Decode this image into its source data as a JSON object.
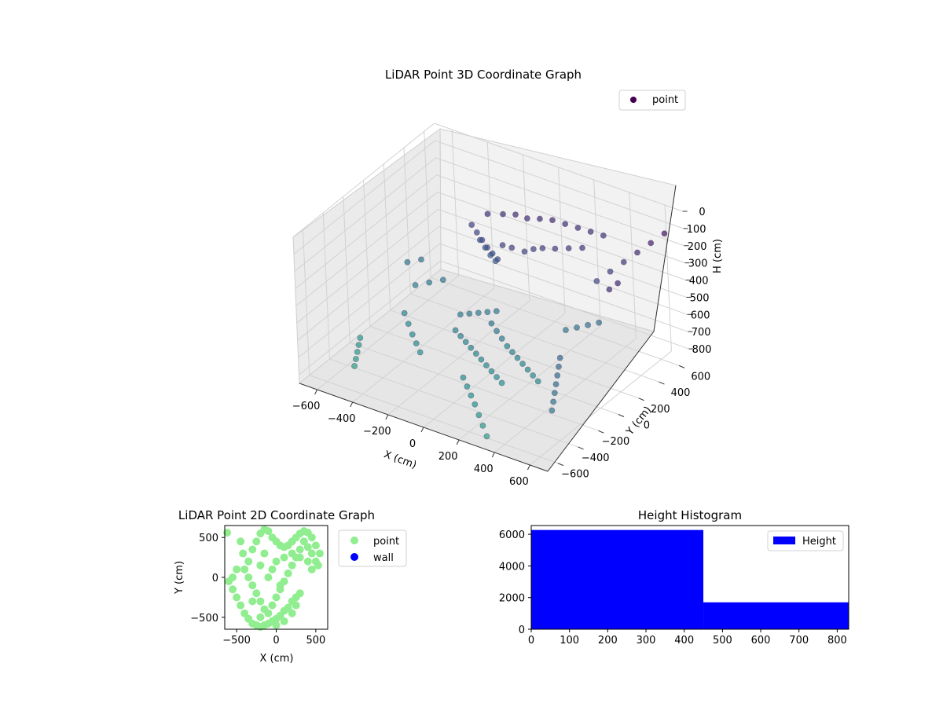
{
  "chart_data": [
    {
      "type": "scatter",
      "title": "LiDAR Point 3D Coordinate Graph",
      "xlabel": "X (cm)",
      "ylabel": "Y (cm)",
      "zlabel": "H (cm)",
      "xlim": [
        -700,
        700
      ],
      "ylim": [
        -700,
        700
      ],
      "zlim": [
        0,
        850
      ],
      "z_inverted": true,
      "grid": true,
      "legend_position": "top-right",
      "x_ticks": [
        "−600",
        "−400",
        "−200",
        "0",
        "200",
        "400",
        "600"
      ],
      "y_ticks": [
        "600",
        "400",
        "200",
        "0",
        "−200",
        "−400",
        "−600"
      ],
      "z_ticks": [
        "0",
        "100",
        "200",
        "300",
        "400",
        "500",
        "600",
        "700",
        "800"
      ],
      "series": [
        {
          "name": "point",
          "color": "#440154",
          "colormap": "viridis",
          "points": [
            [
              -250,
              420,
              230
            ],
            [
              -180,
              450,
              220
            ],
            [
              -120,
              470,
              210
            ],
            [
              -60,
              480,
              215
            ],
            [
              0,
              500,
              205
            ],
            [
              60,
              520,
              200
            ],
            [
              120,
              540,
              210
            ],
            [
              180,
              560,
              220
            ],
            [
              240,
              580,
              230
            ],
            [
              300,
              600,
              240
            ],
            [
              -320,
              380,
              300
            ],
            [
              -280,
              360,
              320
            ],
            [
              -240,
              340,
              340
            ],
            [
              -200,
              320,
              360
            ],
            [
              -160,
              300,
              370
            ],
            [
              -120,
              280,
              380
            ],
            [
              -300,
              420,
              400
            ],
            [
              -260,
              400,
              420
            ],
            [
              -220,
              380,
              440
            ],
            [
              -180,
              360,
              450
            ],
            [
              -100,
              300,
              300
            ],
            [
              -60,
              320,
              310
            ],
            [
              0,
              340,
              320
            ],
            [
              40,
              360,
              300
            ],
            [
              80,
              380,
              290
            ],
            [
              140,
              400,
              280
            ],
            [
              200,
              430,
              270
            ],
            [
              260,
              460,
              260
            ],
            [
              -40,
              60,
              620
            ],
            [
              0,
              40,
              640
            ],
            [
              40,
              20,
              660
            ],
            [
              80,
              0,
              680
            ],
            [
              120,
              -20,
              690
            ],
            [
              160,
              -40,
              700
            ],
            [
              200,
              -60,
              710
            ],
            [
              240,
              -80,
              720
            ],
            [
              280,
              -100,
              730
            ],
            [
              320,
              -120,
              740
            ],
            [
              -200,
              -20,
              680
            ],
            [
              -160,
              -40,
              690
            ],
            [
              -120,
              -60,
              700
            ],
            [
              -80,
              -80,
              710
            ],
            [
              -40,
              -100,
              720
            ],
            [
              0,
              -120,
              730
            ],
            [
              40,
              -140,
              740
            ],
            [
              80,
              -160,
              750
            ],
            [
              120,
              -180,
              760
            ],
            [
              160,
              -200,
              770
            ],
            [
              -240,
              100,
              660
            ],
            [
              -200,
              120,
              650
            ],
            [
              -160,
              140,
              640
            ],
            [
              -120,
              160,
              630
            ],
            [
              -80,
              180,
              620
            ],
            [
              300,
              200,
              600
            ],
            [
              340,
              240,
              590
            ],
            [
              380,
              280,
              580
            ],
            [
              420,
              320,
              570
            ],
            [
              -500,
              0,
              700
            ],
            [
              -450,
              -50,
              720
            ],
            [
              -400,
              -100,
              740
            ],
            [
              -350,
              -150,
              750
            ],
            [
              -300,
              -200,
              760
            ],
            [
              -550,
              200,
              650
            ],
            [
              -500,
              250,
              640
            ],
            [
              -450,
              300,
              630
            ],
            [
              500,
              -200,
              500
            ],
            [
              520,
              -250,
              520
            ],
            [
              540,
              -300,
              540
            ],
            [
              560,
              -350,
              560
            ],
            [
              580,
              -400,
              580
            ],
            [
              600,
              -450,
              600
            ],
            [
              620,
              -500,
              620
            ],
            [
              200,
              -500,
              800
            ],
            [
              250,
              -550,
              820
            ],
            [
              300,
              -600,
              840
            ],
            [
              150,
              -450,
              780
            ],
            [
              100,
              -400,
              770
            ],
            [
              50,
              -350,
              760
            ],
            [
              0,
              -300,
              750
            ],
            [
              -600,
              -300,
              820
            ],
            [
              -580,
              -350,
              830
            ],
            [
              -560,
              -400,
              840
            ],
            [
              -620,
              -250,
              810
            ],
            [
              -640,
              -200,
              800
            ],
            [
              -650,
              300,
              600
            ],
            [
              -600,
              350,
              590
            ],
            [
              650,
              600,
              100
            ],
            [
              600,
              550,
              150
            ],
            [
              550,
              500,
              200
            ],
            [
              500,
              450,
              250
            ],
            [
              450,
              400,
              300
            ],
            [
              400,
              350,
              350
            ],
            [
              620,
              100,
              200
            ],
            [
              640,
              150,
              180
            ]
          ]
        }
      ]
    },
    {
      "type": "scatter",
      "title": "LiDAR Point 2D Coordinate Graph",
      "xlabel": "X (cm)",
      "ylabel": "Y (cm)",
      "xlim": [
        -650,
        650
      ],
      "ylim": [
        -650,
        650
      ],
      "x_ticks": [
        -500,
        0,
        500
      ],
      "y_ticks": [
        500,
        0,
        -500
      ],
      "legend_position": "outside-right",
      "series": [
        {
          "name": "point",
          "color": "#90ee90",
          "points": [
            [
              -620,
              560
            ],
            [
              -600,
              -50
            ],
            [
              -550,
              -150
            ],
            [
              -500,
              -250
            ],
            [
              -450,
              -350
            ],
            [
              -400,
              -450
            ],
            [
              -350,
              -520
            ],
            [
              -300,
              -580
            ],
            [
              -250,
              -600
            ],
            [
              -200,
              -620
            ],
            [
              -150,
              -600
            ],
            [
              -100,
              -580
            ],
            [
              -50,
              -550
            ],
            [
              0,
              -520
            ],
            [
              50,
              -480
            ],
            [
              100,
              -420
            ],
            [
              150,
              -380
            ],
            [
              200,
              -300
            ],
            [
              250,
              -250
            ],
            [
              300,
              -200
            ],
            [
              -400,
              100
            ],
            [
              -350,
              200
            ],
            [
              -300,
              350
            ],
            [
              -250,
              450
            ],
            [
              -200,
              550
            ],
            [
              -150,
              600
            ],
            [
              -100,
              580
            ],
            [
              -50,
              500
            ],
            [
              0,
              450
            ],
            [
              50,
              400
            ],
            [
              100,
              380
            ],
            [
              150,
              400
            ],
            [
              200,
              450
            ],
            [
              250,
              500
            ],
            [
              300,
              550
            ],
            [
              350,
              580
            ],
            [
              400,
              560
            ],
            [
              450,
              500
            ],
            [
              500,
              400
            ],
            [
              550,
              300
            ],
            [
              -300,
              -100
            ],
            [
              -250,
              -200
            ],
            [
              -200,
              -300
            ],
            [
              -150,
              -400
            ],
            [
              -100,
              -450
            ],
            [
              -50,
              -350
            ],
            [
              0,
              -250
            ],
            [
              50,
              -150
            ],
            [
              100,
              -50
            ],
            [
              150,
              50
            ],
            [
              200,
              150
            ],
            [
              250,
              250
            ],
            [
              300,
              350
            ],
            [
              350,
              450
            ],
            [
              400,
              380
            ],
            [
              450,
              300
            ],
            [
              500,
              200
            ],
            [
              530,
              150
            ],
            [
              -450,
              450
            ],
            [
              -420,
              300
            ],
            [
              -500,
              100
            ],
            [
              -550,
              0
            ],
            [
              -350,
              0
            ],
            [
              -300,
              -300
            ],
            [
              -200,
              -500
            ],
            [
              0,
              -600
            ],
            [
              100,
              -550
            ],
            [
              200,
              -450
            ],
            [
              250,
              -350
            ],
            [
              50,
              -100
            ],
            [
              -100,
              0
            ],
            [
              -50,
              100
            ],
            [
              0,
              200
            ],
            [
              100,
              250
            ],
            [
              200,
              300
            ],
            [
              300,
              250
            ],
            [
              400,
              200
            ],
            [
              450,
              100
            ],
            [
              -150,
              300
            ],
            [
              -200,
              150
            ]
          ]
        },
        {
          "name": "wall",
          "color": "#0000ff",
          "points": []
        }
      ]
    },
    {
      "type": "bar",
      "title": "Height Histogram",
      "xlabel": "",
      "ylabel": "",
      "xlim": [
        0,
        830
      ],
      "ylim": [
        0,
        6550
      ],
      "x_ticks": [
        0,
        100,
        200,
        300,
        400,
        500,
        600,
        700,
        800
      ],
      "y_ticks": [
        0,
        2000,
        4000,
        6000
      ],
      "legend_position": "top-right",
      "series": [
        {
          "name": "Height",
          "color": "#0000ff",
          "bins": [
            {
              "from": 0,
              "to": 450,
              "count": 6270
            },
            {
              "from": 450,
              "to": 830,
              "count": 1700
            }
          ]
        }
      ]
    }
  ]
}
